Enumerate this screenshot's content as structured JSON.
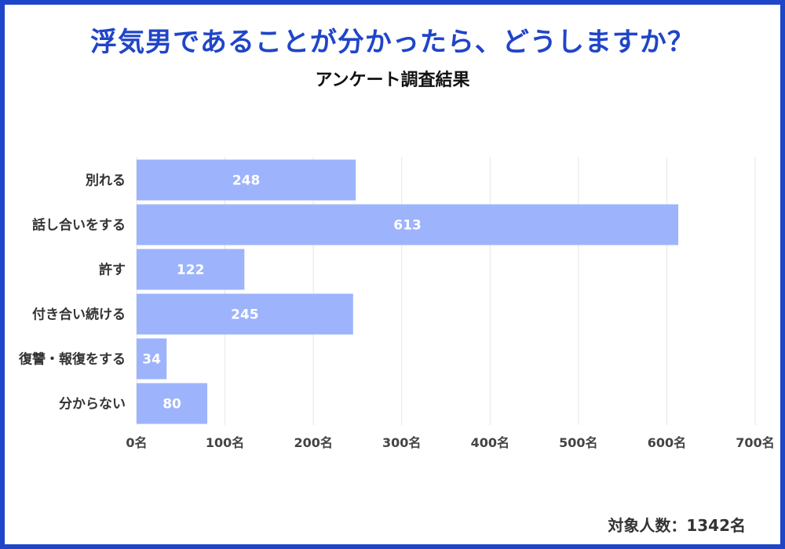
{
  "title": "浮気男であることが分かったら、どうしますか？",
  "subtitle": "アンケート調査結果",
  "footnote": "対象人数：1342名",
  "colors": {
    "frame": "#1f45c8",
    "title": "#1f45c8",
    "bar": "#9db4fc",
    "grid": "#e6e6e6",
    "bar_label": "#ffffff"
  },
  "chart_data": {
    "type": "bar",
    "orientation": "horizontal",
    "categories": [
      "別れる",
      "話し合いをする",
      "許す",
      "付き合い続ける",
      "復讐・報復をする",
      "分からない"
    ],
    "values": [
      248,
      613,
      122,
      245,
      34,
      80
    ],
    "xlim": [
      0,
      700
    ],
    "x_ticks": [
      0,
      100,
      200,
      300,
      400,
      500,
      600,
      700
    ],
    "x_tick_labels": [
      "0名",
      "100名",
      "200名",
      "300名",
      "400名",
      "500名",
      "600名",
      "700名"
    ],
    "grid": true,
    "data_labels": true
  }
}
